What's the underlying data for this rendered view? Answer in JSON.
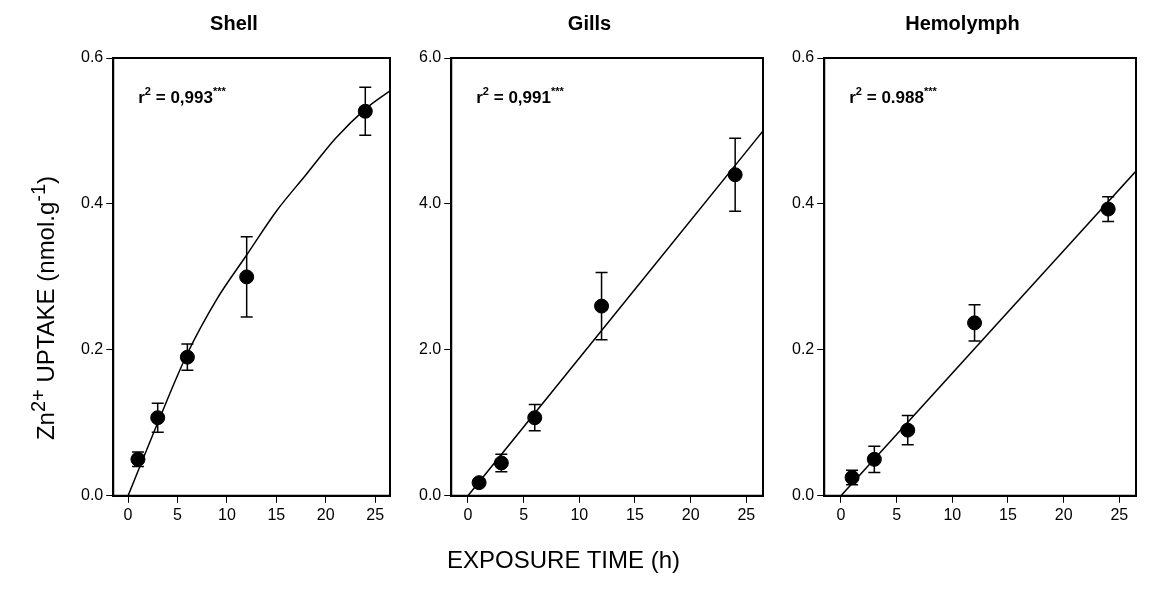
{
  "chart_data": [
    {
      "type": "scatter",
      "title": "Shell",
      "ylabel": "Zn$^{2+}$ UPTAKE (nmol.g$^{-1}$)",
      "annotations": [
        "r$^{2}$ = 0,993$^{***}$"
      ],
      "xlim": [
        -1.5,
        26.5
      ],
      "xticks": [
        0,
        5,
        10,
        15,
        20,
        25
      ],
      "ylim": [
        0,
        0.6
      ],
      "yticks": [
        {
          "value": 0,
          "label": "0.0"
        },
        {
          "value": 0.2,
          "label": "0.2"
        },
        {
          "value": 0.4,
          "label": "0.4"
        },
        {
          "value": 0.6,
          "label": "0.6"
        }
      ],
      "grid": false,
      "series": [
        {
          "type": "scatter",
          "marker": "circle",
          "color": "#000000",
          "x": [
            1,
            3,
            6,
            12,
            24
          ],
          "values": [
            0.05,
            0.107,
            0.19,
            0.3,
            0.527
          ],
          "errors": [
            0.01,
            0.02,
            0.018,
            0.055,
            0.033
          ]
        },
        {
          "type": "line",
          "color": "#000000",
          "line_style": "solid",
          "x": [
            0,
            3,
            6,
            9,
            12,
            15,
            18,
            21,
            24,
            26.5
          ],
          "values": [
            0,
            0.1,
            0.195,
            0.27,
            0.33,
            0.39,
            0.44,
            0.49,
            0.53,
            0.555
          ]
        }
      ]
    },
    {
      "type": "scatter",
      "title": "Gills",
      "xlabel": "EXPOSURE TIME (h)",
      "annotations": [
        "r$^{2}$ = 0,991$^{***}$"
      ],
      "xlim": [
        -1.5,
        26.5
      ],
      "xticks": [
        0,
        5,
        10,
        15,
        20,
        25
      ],
      "ylim": [
        0,
        6
      ],
      "yticks": [
        {
          "value": 0,
          "label": "0.0"
        },
        {
          "value": 2,
          "label": "2.0"
        },
        {
          "value": 4,
          "label": "4.0"
        },
        {
          "value": 6,
          "label": "6.0"
        }
      ],
      "grid": false,
      "series": [
        {
          "type": "scatter",
          "marker": "circle",
          "color": "#000000",
          "x": [
            1,
            3,
            6,
            12,
            24
          ],
          "values": [
            0.18,
            0.45,
            1.07,
            2.6,
            4.4
          ],
          "errors": [
            0.05,
            0.12,
            0.18,
            0.46,
            0.5
          ]
        },
        {
          "type": "line",
          "color": "#000000",
          "line_style": "solid",
          "x": [
            0,
            26.5
          ],
          "values": [
            0,
            5.0
          ]
        }
      ]
    },
    {
      "type": "scatter",
      "title": "Hemolymph",
      "annotations": [
        "r$^{2}$ = 0.988$^{***}$"
      ],
      "xlim": [
        -1.5,
        26.5
      ],
      "xticks": [
        0,
        5,
        10,
        15,
        20,
        25
      ],
      "ylim": [
        0,
        0.6
      ],
      "yticks": [
        {
          "value": 0,
          "label": "0.0"
        },
        {
          "value": 0.2,
          "label": "0.2"
        },
        {
          "value": 0.4,
          "label": "0.4"
        },
        {
          "value": 0.6,
          "label": "0.6"
        }
      ],
      "grid": false,
      "series": [
        {
          "type": "scatter",
          "marker": "circle",
          "color": "#000000",
          "x": [
            1,
            3,
            6,
            12,
            24
          ],
          "values": [
            0.025,
            0.05,
            0.09,
            0.237,
            0.393
          ],
          "errors": [
            0.01,
            0.018,
            0.02,
            0.025,
            0.017
          ]
        },
        {
          "type": "line",
          "color": "#000000",
          "line_style": "solid",
          "x": [
            0,
            26.5
          ],
          "values": [
            0,
            0.445
          ]
        }
      ]
    }
  ]
}
